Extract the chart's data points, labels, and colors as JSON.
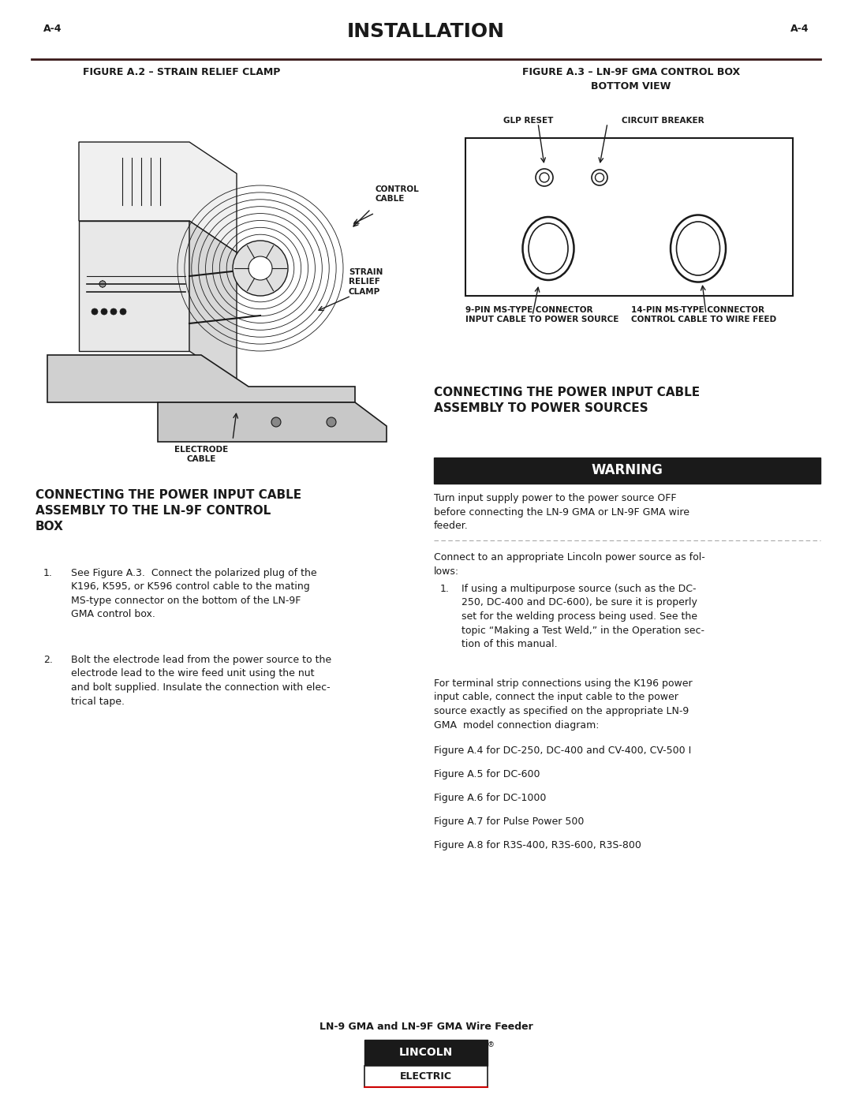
{
  "page_num": "A-4",
  "title": "INSTALLATION",
  "bg_color": "#ffffff",
  "text_color": "#1a1a1a",
  "fig_a2_title": "FIGURE A.2 – STRAIN RELIEF CLAMP",
  "fig_a3_title": "FIGURE A.3 – LN-9F GMA CONTROL BOX\nBOTTOM VIEW",
  "fig_a3_labels": {
    "glp_reset": "GLP RESET",
    "circuit_breaker": "CIRCUIT BREAKER",
    "nine_pin": "9-PIN MS-TYPE CONNECTOR\nINPUT CABLE TO POWER SOURCE",
    "fourteen_pin": "14-PIN MS-TYPE CONNECTOR\nCONTROL CABLE TO WIRE FEED"
  },
  "fig_a2_labels": {
    "control_cable": "CONTROL\nCABLE",
    "strain_relief": "STRAIN\nRELIEF\nCLAMP",
    "electrode_cable": "ELECTRODE\nCABLE"
  },
  "left_section_title": "CONNECTING THE POWER INPUT CABLE\nASSEMBLY TO THE LN-9F CONTROL\nBOX",
  "right_section_title": "CONNECTING THE POWER INPUT CABLE\nASSEMBLY TO POWER SOURCES",
  "warning_text": "WARNING",
  "warning_body": "Turn input supply power to the power source OFF\nbefore connecting the LN-9 GMA or LN-9F GMA wire\nfeeder.",
  "left_body1_num": "1.",
  "left_body1": "See Figure A.3.  Connect the polarized plug of the\nK196, K595, or K596 control cable to the mating\nMS-type connector on the bottom of the LN-9F\nGMA control box.",
  "left_body2_num": "2.",
  "left_body2": "Bolt the electrode lead from the power source to the\nelectrode lead to the wire feed unit using the nut\nand bolt supplied. Insulate the connection with elec-\ntrical tape.",
  "right_body1": "Connect to an appropriate Lincoln power source as fol-\nlows:",
  "right_body2_num": "1.",
  "right_body2": "If using a multipurpose source (such as the DC-\n250, DC-400 and DC-600), be sure it is properly\nset for the welding process being used. See the\ntopic “Making a Test Weld,” in the Operation sec-\ntion of this manual.",
  "right_body3": "For terminal strip connections using the K196 power\ninput cable, connect the input cable to the power\nsource exactly as specified on the appropriate LN-9\nGMA  model connection diagram:",
  "right_list": [
    "Figure A.4 for DC-250, DC-400 and CV-400, CV-500 I",
    "Figure A.5 for DC-600",
    "Figure A.6 for DC-1000",
    "Figure A.7 for Pulse Power 500",
    "Figure A.8 for R3S-400, R3S-600, R3S-800"
  ],
  "footer_text": "LN-9 GMA and LN-9F GMA Wire Feeder"
}
